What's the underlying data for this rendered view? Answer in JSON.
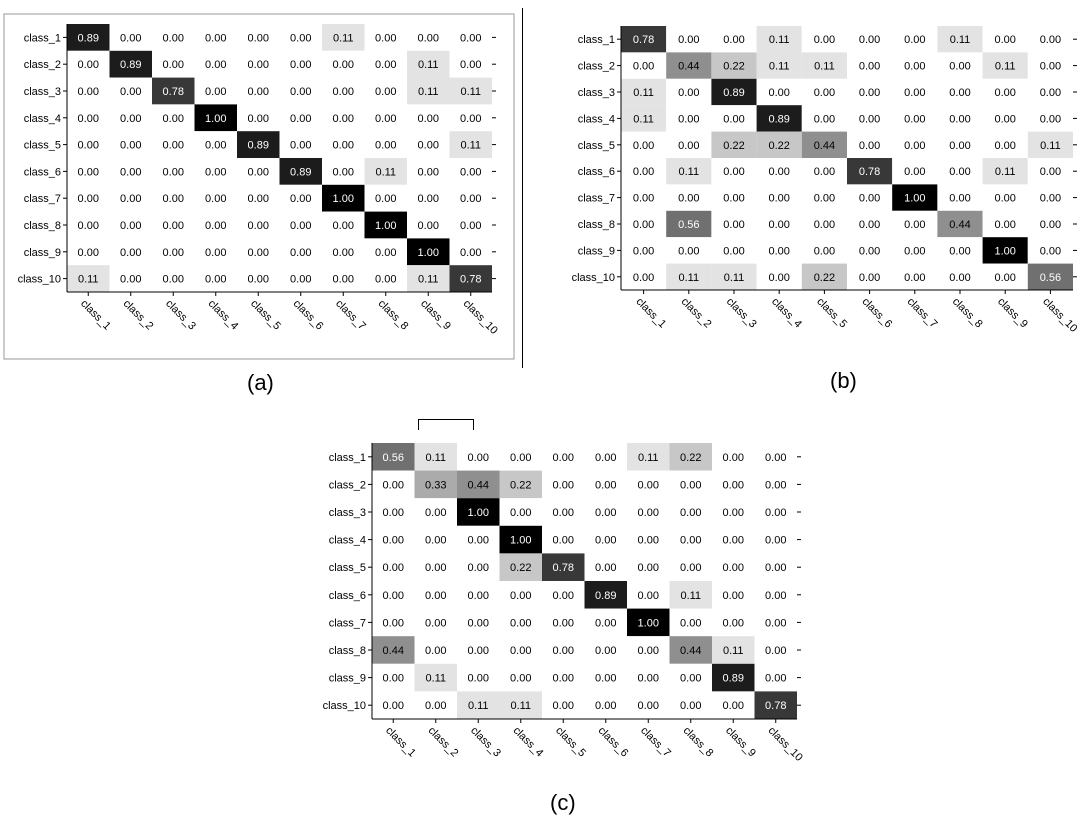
{
  "chart_data": [
    {
      "type": "heatmap",
      "panel": "(a)",
      "categories": [
        "class_1",
        "class_2",
        "class_3",
        "class_4",
        "class_5",
        "class_6",
        "class_7",
        "class_8",
        "class_9",
        "class_10"
      ],
      "col_labels": [
        "class_1",
        "class_2",
        "class_3",
        "class_4",
        "class_5",
        "class_6",
        "class_7",
        "class_8",
        "class_9",
        "class_10"
      ],
      "matrix": [
        [
          0.89,
          0.0,
          0.0,
          0.0,
          0.0,
          0.0,
          0.11,
          0.0,
          0.0,
          0.0
        ],
        [
          0.0,
          0.89,
          0.0,
          0.0,
          0.0,
          0.0,
          0.0,
          0.0,
          0.11,
          0.0
        ],
        [
          0.0,
          0.0,
          0.78,
          0.0,
          0.0,
          0.0,
          0.0,
          0.0,
          0.11,
          0.11
        ],
        [
          0.0,
          0.0,
          0.0,
          1.0,
          0.0,
          0.0,
          0.0,
          0.0,
          0.0,
          0.0
        ],
        [
          0.0,
          0.0,
          0.0,
          0.0,
          0.89,
          0.0,
          0.0,
          0.0,
          0.0,
          0.11
        ],
        [
          0.0,
          0.0,
          0.0,
          0.0,
          0.0,
          0.89,
          0.0,
          0.11,
          0.0,
          0.0
        ],
        [
          0.0,
          0.0,
          0.0,
          0.0,
          0.0,
          0.0,
          1.0,
          0.0,
          0.0,
          0.0
        ],
        [
          0.0,
          0.0,
          0.0,
          0.0,
          0.0,
          0.0,
          0.0,
          1.0,
          0.0,
          0.0
        ],
        [
          0.0,
          0.0,
          0.0,
          0.0,
          0.0,
          0.0,
          0.0,
          0.0,
          1.0,
          0.0
        ],
        [
          0.11,
          0.0,
          0.0,
          0.0,
          0.0,
          0.0,
          0.0,
          0.0,
          0.11,
          0.78
        ]
      ],
      "colormap": "gray-reversed",
      "range": [
        0,
        1
      ]
    },
    {
      "type": "heatmap",
      "panel": "(b)",
      "categories": [
        "class_1",
        "class_2",
        "class_3",
        "class_4",
        "class_5",
        "class_6",
        "class_7",
        "class_8",
        "class_9",
        "class_10"
      ],
      "col_labels": [
        "class_1",
        "class_2",
        "class_3",
        "class_4",
        "class_5",
        "class_6",
        "class_7",
        "class_8",
        "class_9",
        "class_10"
      ],
      "matrix": [
        [
          0.78,
          0.0,
          0.0,
          0.11,
          0.0,
          0.0,
          0.0,
          0.11,
          0.0,
          0.0
        ],
        [
          0.0,
          0.44,
          0.22,
          0.11,
          0.11,
          0.0,
          0.0,
          0.0,
          0.11,
          0.0
        ],
        [
          0.11,
          0.0,
          0.89,
          0.0,
          0.0,
          0.0,
          0.0,
          0.0,
          0.0,
          0.0
        ],
        [
          0.11,
          0.0,
          0.0,
          0.89,
          0.0,
          0.0,
          0.0,
          0.0,
          0.0,
          0.0
        ],
        [
          0.0,
          0.0,
          0.22,
          0.22,
          0.44,
          0.0,
          0.0,
          0.0,
          0.0,
          0.11
        ],
        [
          0.0,
          0.11,
          0.0,
          0.0,
          0.0,
          0.78,
          0.0,
          0.0,
          0.11,
          0.0
        ],
        [
          0.0,
          0.0,
          0.0,
          0.0,
          0.0,
          0.0,
          1.0,
          0.0,
          0.0,
          0.0
        ],
        [
          0.0,
          0.56,
          0.0,
          0.0,
          0.0,
          0.0,
          0.0,
          0.44,
          0.0,
          0.0
        ],
        [
          0.0,
          0.0,
          0.0,
          0.0,
          0.0,
          0.0,
          0.0,
          0.0,
          1.0,
          0.0
        ],
        [
          0.0,
          0.11,
          0.11,
          0.0,
          0.22,
          0.0,
          0.0,
          0.0,
          0.0,
          0.56
        ]
      ],
      "colormap": "gray-reversed",
      "range": [
        0,
        1
      ]
    },
    {
      "type": "heatmap",
      "panel": "(c)",
      "categories": [
        "class_1",
        "class_2",
        "class_3",
        "class_4",
        "class_5",
        "class_6",
        "class_7",
        "class_8",
        "class_9",
        "class_10"
      ],
      "col_labels": [
        "class_1",
        "class_2",
        "class_3",
        "class_4",
        "class_5",
        "class_6",
        "class_7",
        "class_8",
        "class_9",
        "class_10"
      ],
      "matrix": [
        [
          0.56,
          0.11,
          0.0,
          0.0,
          0.0,
          0.0,
          0.11,
          0.22,
          0.0,
          0.0
        ],
        [
          0.0,
          0.33,
          0.44,
          0.22,
          0.0,
          0.0,
          0.0,
          0.0,
          0.0,
          0.0
        ],
        [
          0.0,
          0.0,
          1.0,
          0.0,
          0.0,
          0.0,
          0.0,
          0.0,
          0.0,
          0.0
        ],
        [
          0.0,
          0.0,
          0.0,
          1.0,
          0.0,
          0.0,
          0.0,
          0.0,
          0.0,
          0.0
        ],
        [
          0.0,
          0.0,
          0.0,
          0.22,
          0.78,
          0.0,
          0.0,
          0.0,
          0.0,
          0.0
        ],
        [
          0.0,
          0.0,
          0.0,
          0.0,
          0.0,
          0.89,
          0.0,
          0.11,
          0.0,
          0.0
        ],
        [
          0.0,
          0.0,
          0.0,
          0.0,
          0.0,
          0.0,
          1.0,
          0.0,
          0.0,
          0.0
        ],
        [
          0.44,
          0.0,
          0.0,
          0.0,
          0.0,
          0.0,
          0.0,
          0.44,
          0.11,
          0.0
        ],
        [
          0.0,
          0.11,
          0.0,
          0.0,
          0.0,
          0.0,
          0.0,
          0.0,
          0.89,
          0.0
        ],
        [
          0.0,
          0.0,
          0.11,
          0.11,
          0.0,
          0.0,
          0.0,
          0.0,
          0.0,
          0.78
        ]
      ],
      "colormap": "gray-reversed",
      "range": [
        0,
        1
      ]
    }
  ],
  "captions": [
    "(a)",
    "(b)",
    "(c)"
  ],
  "colors": {
    "low": "#ffffff",
    "high": "#000000",
    "text_dark": "#000000",
    "text_light": "#ffffff"
  }
}
